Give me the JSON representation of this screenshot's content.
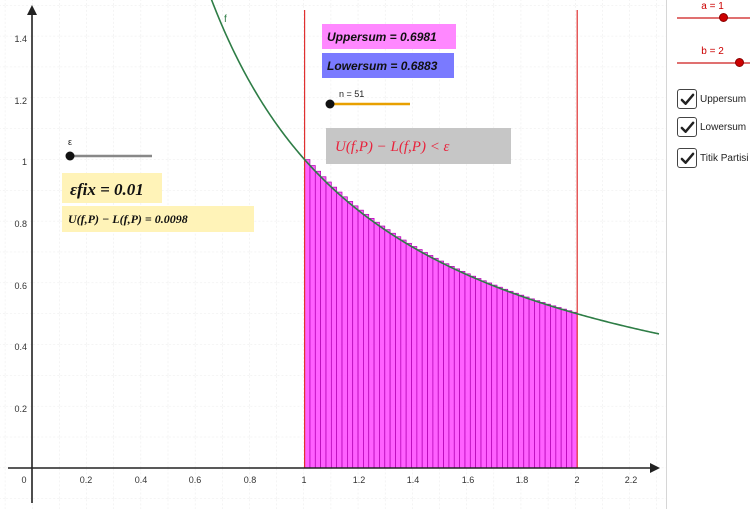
{
  "graph": {
    "function_label": "f",
    "x_ticks": [
      "0",
      "0.2",
      "0.4",
      "0.6",
      "0.8",
      "1",
      "1.2",
      "1.4",
      "1.6",
      "1.8",
      "2",
      "2.2"
    ],
    "y_ticks": [
      "0.2",
      "0.4",
      "0.6",
      "0.8",
      "1",
      "1.2",
      "1.4"
    ],
    "upper_sum": "Uppersum = 0.6981",
    "lower_sum": "Lowersum = 0.6883",
    "n_label": "n = 51",
    "epsilon_label": "ε",
    "epsilon_fix_text": "εfix = 0.01",
    "difference_text": "U(f,P) − L(f,P) = 0.0098",
    "condition_text": "U(f,P) − L(f,P) < ε",
    "colors": {
      "curve": "#2e7d46",
      "bound_lines": "#e03030",
      "bars_fill": "#ff44ff",
      "bars_stroke": "#b000b0",
      "upper_box": "#ff88ff",
      "lower_box": "#7a7aff",
      "yellow_box": "#fff3b8",
      "condition_box": "#c6c6c6",
      "n_slider": "#e8a000"
    }
  },
  "chart_data": {
    "type": "bar",
    "function": "f(x) = 1/x",
    "interval": [
      1,
      2
    ],
    "a": 1,
    "b": 2,
    "n": 51,
    "upper_sum": 0.6981,
    "lower_sum": 0.6883,
    "epsilon_fix": 0.01,
    "difference": 0.0098,
    "xlim": [
      0,
      2.3
    ],
    "ylim": [
      0,
      1.48
    ],
    "grid": true
  },
  "sidebar": {
    "slider_a_label": "a = 1",
    "slider_b_label": "b = 2",
    "checkboxes": [
      {
        "label": "Uppersum",
        "checked": true
      },
      {
        "label": "Lowersum",
        "checked": true
      },
      {
        "label": "Titik Partisi",
        "checked": true
      }
    ]
  }
}
